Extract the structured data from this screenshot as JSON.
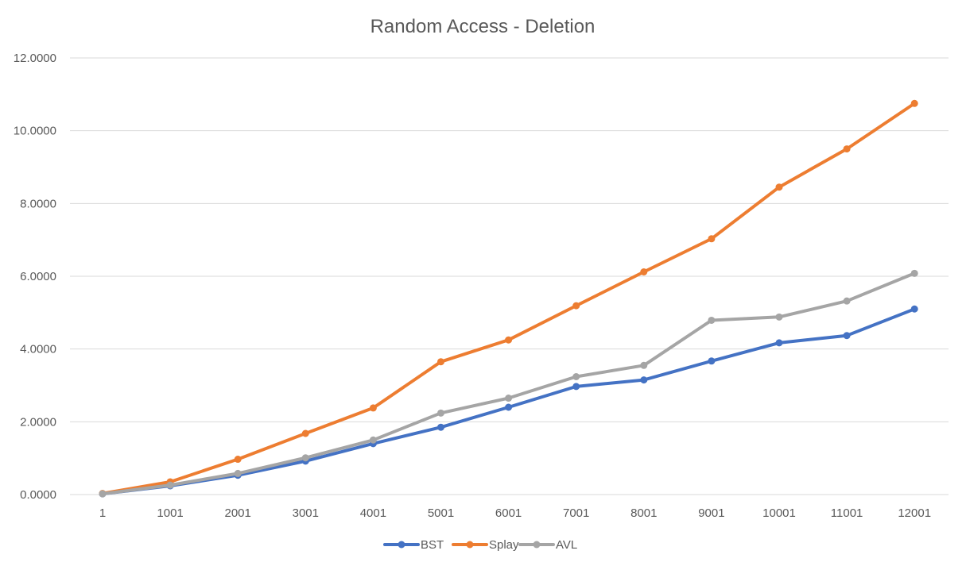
{
  "chart_data": {
    "type": "line",
    "title": "Random Access - Deletion",
    "xlabel": "",
    "ylabel": "",
    "categories": [
      "1",
      "1001",
      "2001",
      "3001",
      "4001",
      "5001",
      "6001",
      "7001",
      "8001",
      "9001",
      "10001",
      "11001",
      "12001"
    ],
    "ylim": [
      0,
      12
    ],
    "y_ticks": [
      "0.0000",
      "2.0000",
      "4.0000",
      "6.0000",
      "8.0000",
      "10.0000",
      "12.0000"
    ],
    "y_tick_values": [
      0,
      2,
      4,
      6,
      8,
      10,
      12
    ],
    "grid": true,
    "legend_position": "bottom",
    "markers": true,
    "series": [
      {
        "name": "BST",
        "color": "#4472C4",
        "values": [
          0.02,
          0.24,
          0.53,
          0.92,
          1.4,
          1.85,
          2.4,
          2.97,
          3.15,
          3.67,
          4.17,
          4.37,
          5.1
        ]
      },
      {
        "name": "Splay",
        "color": "#ED7D31",
        "values": [
          0.03,
          0.35,
          0.97,
          1.68,
          2.38,
          3.65,
          4.25,
          5.19,
          6.12,
          7.03,
          8.45,
          9.5,
          10.75
        ]
      },
      {
        "name": "AVL",
        "color": "#A5A5A5",
        "values": [
          0.02,
          0.26,
          0.58,
          1.01,
          1.5,
          2.24,
          2.65,
          3.24,
          3.55,
          4.79,
          4.88,
          5.32,
          6.08
        ]
      }
    ]
  }
}
